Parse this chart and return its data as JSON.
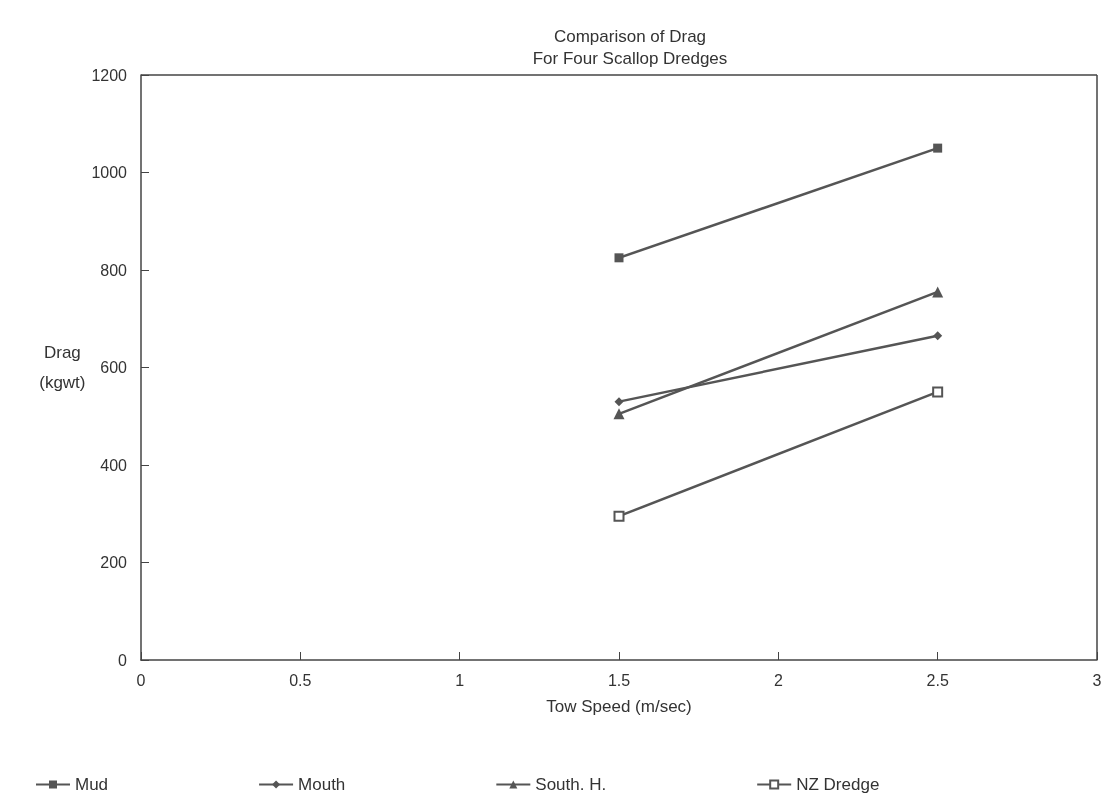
{
  "chart_data": {
    "type": "line",
    "title": "Comparison of Drag\nFor Four Scallop Dredges",
    "xlabel": "Tow Speed (m/sec)",
    "ylabel": "Drag\n(kgwt)",
    "xlim": [
      0,
      3
    ],
    "xticks": [
      0,
      0.5,
      1,
      1.5,
      2,
      2.5,
      3
    ],
    "ylim": [
      0,
      1200
    ],
    "yticks": [
      0,
      200,
      400,
      600,
      800,
      {
        "value": 1000,
        "label": "1000"
      },
      {
        "value": 1200,
        "label": "1200"
      }
    ],
    "x": [
      1.5,
      2.5
    ],
    "grid": false,
    "legend": "bottom",
    "line_style": "solid",
    "series": [
      {
        "name": "Mud",
        "color": "#555555",
        "marker": "square",
        "values": [
          825,
          1050
        ]
      },
      {
        "name": "Mouth",
        "color": "#555555",
        "marker": "diamond",
        "values": [
          530,
          665
        ]
      },
      {
        "name": "South. H.",
        "color": "#555555",
        "marker": "triangle",
        "values": [
          505,
          755
        ]
      },
      {
        "name": "NZ Dredge",
        "color": "#555555",
        "marker": "square",
        "values": [
          295,
          550
        ]
      }
    ]
  }
}
